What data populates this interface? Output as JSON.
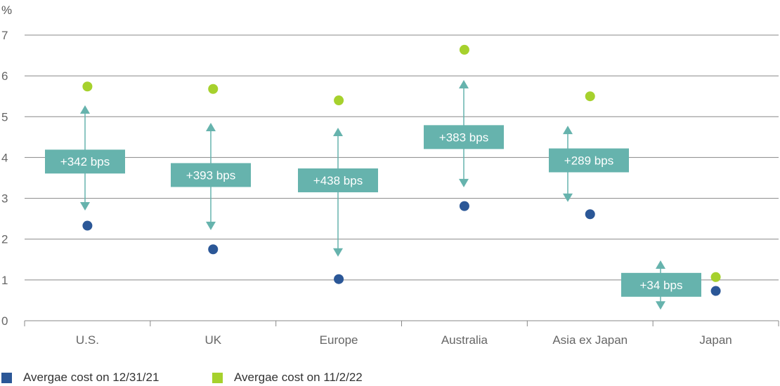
{
  "chart_data": {
    "type": "scatter",
    "title": "",
    "ylabel": "%",
    "xlabel": "",
    "ylim": [
      0,
      7
    ],
    "yticks": [
      "0",
      "1",
      "2",
      "3",
      "4",
      "5",
      "6",
      "7"
    ],
    "grid": true,
    "categories": [
      "U.S.",
      "UK",
      "Europe",
      "Australia",
      "Asia ex Japan",
      "Japan"
    ],
    "series": [
      {
        "name": "Avergae cost on 12/31/21",
        "color": "#2b5797",
        "values": [
          2.33,
          1.75,
          1.02,
          2.81,
          2.61,
          0.73
        ]
      },
      {
        "name": "Avergae cost on 11/2/22",
        "color": "#a6d12d",
        "values": [
          5.74,
          5.68,
          5.4,
          6.64,
          5.5,
          1.07
        ]
      }
    ],
    "annotations": [
      "+342  bps",
      "+393  bps",
      "+438  bps",
      "+383  bps",
      "+289  bps",
      "+34  bps"
    ],
    "annotation_color": "#66b3ad",
    "legend_placement": "bottom-left"
  }
}
